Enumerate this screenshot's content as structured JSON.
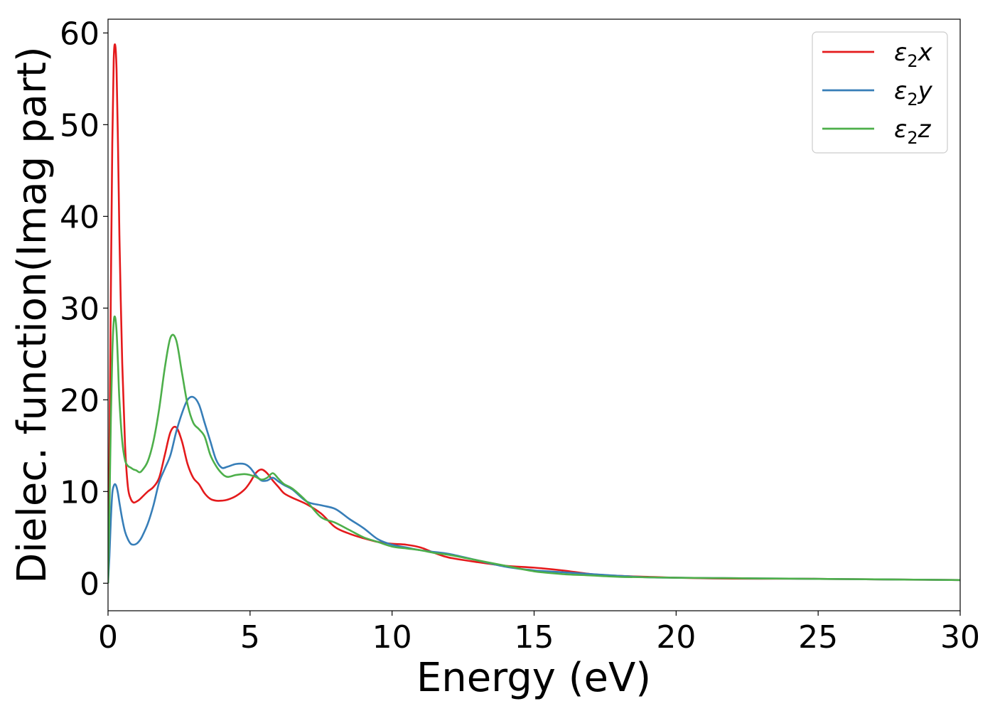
{
  "chart_data": {
    "type": "line",
    "xlabel": "Energy (eV)",
    "ylabel": "Dielec. function(Imag part)",
    "xlim": [
      0,
      30
    ],
    "ylim": [
      -3,
      61.5
    ],
    "xticks": [
      0,
      5,
      10,
      15,
      20,
      25,
      30
    ],
    "yticks": [
      0,
      10,
      20,
      30,
      40,
      50,
      60
    ],
    "grid": false,
    "legend_position": "top-right",
    "series": [
      {
        "name": "ε₂x",
        "label_parts": [
          "ε",
          "2",
          "x"
        ],
        "color": "#e41a1c",
        "x": [
          0,
          0.05,
          0.1,
          0.15,
          0.2,
          0.25,
          0.3,
          0.35,
          0.4,
          0.5,
          0.6,
          0.7,
          0.8,
          0.9,
          1.0,
          1.1,
          1.2,
          1.4,
          1.6,
          1.8,
          2.0,
          2.2,
          2.4,
          2.6,
          2.8,
          3.0,
          3.2,
          3.4,
          3.6,
          3.8,
          4.0,
          4.2,
          4.5,
          4.8,
          5.0,
          5.2,
          5.4,
          5.6,
          5.8,
          6.0,
          6.2,
          6.5,
          7.0,
          7.5,
          8.0,
          8.5,
          9.0,
          9.5,
          10.0,
          10.5,
          11.0,
          11.5,
          12.0,
          13.0,
          14.0,
          15.0,
          16.0,
          17.0,
          18.0,
          19.0,
          20.0,
          22.0,
          24.0,
          26.0,
          28.0,
          30.0
        ],
        "values": [
          0,
          14,
          32,
          48,
          57,
          58.7,
          56,
          48,
          38,
          24,
          15,
          10.5,
          9.2,
          8.8,
          8.9,
          9.1,
          9.4,
          10,
          10.5,
          11.5,
          14,
          16.5,
          17.0,
          15.5,
          13.0,
          11.5,
          10.8,
          9.8,
          9.2,
          9.0,
          9.0,
          9.1,
          9.5,
          10.2,
          11.0,
          12.0,
          12.4,
          12.0,
          11.2,
          10.5,
          9.8,
          9.3,
          8.6,
          7.6,
          6.1,
          5.4,
          4.9,
          4.5,
          4.3,
          4.2,
          3.9,
          3.3,
          2.8,
          2.3,
          1.9,
          1.7,
          1.4,
          1.0,
          0.8,
          0.7,
          0.6,
          0.5,
          0.5,
          0.45,
          0.4,
          0.35
        ]
      },
      {
        "name": "ε₂y",
        "label_parts": [
          "ε",
          "2",
          "y"
        ],
        "color": "#377eb8",
        "x": [
          0,
          0.05,
          0.1,
          0.15,
          0.2,
          0.25,
          0.3,
          0.35,
          0.4,
          0.5,
          0.6,
          0.7,
          0.8,
          0.9,
          1.0,
          1.1,
          1.2,
          1.4,
          1.6,
          1.8,
          2.0,
          2.2,
          2.4,
          2.6,
          2.8,
          3.0,
          3.2,
          3.4,
          3.6,
          3.8,
          4.0,
          4.2,
          4.5,
          4.8,
          5.0,
          5.2,
          5.4,
          5.6,
          5.8,
          6.0,
          6.2,
          6.5,
          7.0,
          7.5,
          8.0,
          8.5,
          9.0,
          9.5,
          10.0,
          10.5,
          11.0,
          11.5,
          12.0,
          13.0,
          14.0,
          15.0,
          16.0,
          17.0,
          18.0,
          19.0,
          20.0,
          22.0,
          24.0,
          26.0,
          28.0,
          30.0
        ],
        "values": [
          0,
          3,
          7,
          9.8,
          10.6,
          10.8,
          10.5,
          9.8,
          8.8,
          7.0,
          5.6,
          4.8,
          4.3,
          4.2,
          4.3,
          4.6,
          5.1,
          6.5,
          8.5,
          11,
          12.5,
          14,
          16.5,
          18.5,
          20.0,
          20.3,
          19.5,
          17.5,
          15.5,
          13.5,
          12.6,
          12.7,
          13.0,
          13.0,
          12.6,
          11.8,
          11.2,
          11.2,
          11.5,
          11.1,
          10.7,
          10.2,
          8.9,
          8.5,
          8.1,
          7.0,
          6.0,
          4.8,
          4.2,
          3.9,
          3.6,
          3.4,
          3.2,
          2.5,
          1.8,
          1.4,
          1.2,
          1.0,
          0.8,
          0.65,
          0.6,
          0.55,
          0.5,
          0.45,
          0.4,
          0.35
        ]
      },
      {
        "name": "ε₂z",
        "label_parts": [
          "ε",
          "2",
          "z"
        ],
        "color": "#4daf4a",
        "x": [
          0,
          0.05,
          0.1,
          0.15,
          0.2,
          0.25,
          0.3,
          0.35,
          0.4,
          0.5,
          0.6,
          0.7,
          0.8,
          0.9,
          1.0,
          1.1,
          1.2,
          1.4,
          1.6,
          1.8,
          2.0,
          2.2,
          2.4,
          2.6,
          2.8,
          3.0,
          3.2,
          3.4,
          3.6,
          3.8,
          4.0,
          4.2,
          4.5,
          4.8,
          5.0,
          5.2,
          5.4,
          5.6,
          5.8,
          6.0,
          6.2,
          6.5,
          7.0,
          7.5,
          8.0,
          8.5,
          9.0,
          9.5,
          10.0,
          10.5,
          11.0,
          11.5,
          12.0,
          13.0,
          14.0,
          15.0,
          16.0,
          17.0,
          18.0,
          19.0,
          20.0,
          22.0,
          24.0,
          26.0,
          28.0,
          30.0
        ],
        "values": [
          0,
          8,
          18,
          25,
          28.5,
          29.0,
          27.5,
          24,
          20,
          15.5,
          13.4,
          12.8,
          12.6,
          12.4,
          12.3,
          12.1,
          12.3,
          13.3,
          15.5,
          19,
          23.5,
          26.8,
          26.5,
          23,
          19.5,
          17.5,
          16.8,
          16.0,
          14.0,
          12.8,
          12.0,
          11.6,
          11.8,
          11.9,
          11.8,
          11.6,
          11.3,
          11.5,
          12.0,
          11.4,
          10.8,
          10.3,
          8.9,
          7.2,
          6.6,
          5.8,
          5.0,
          4.5,
          4.0,
          3.8,
          3.6,
          3.3,
          3.1,
          2.5,
          1.9,
          1.3,
          1.0,
          0.85,
          0.7,
          0.65,
          0.6,
          0.55,
          0.5,
          0.45,
          0.4,
          0.35
        ]
      }
    ]
  }
}
